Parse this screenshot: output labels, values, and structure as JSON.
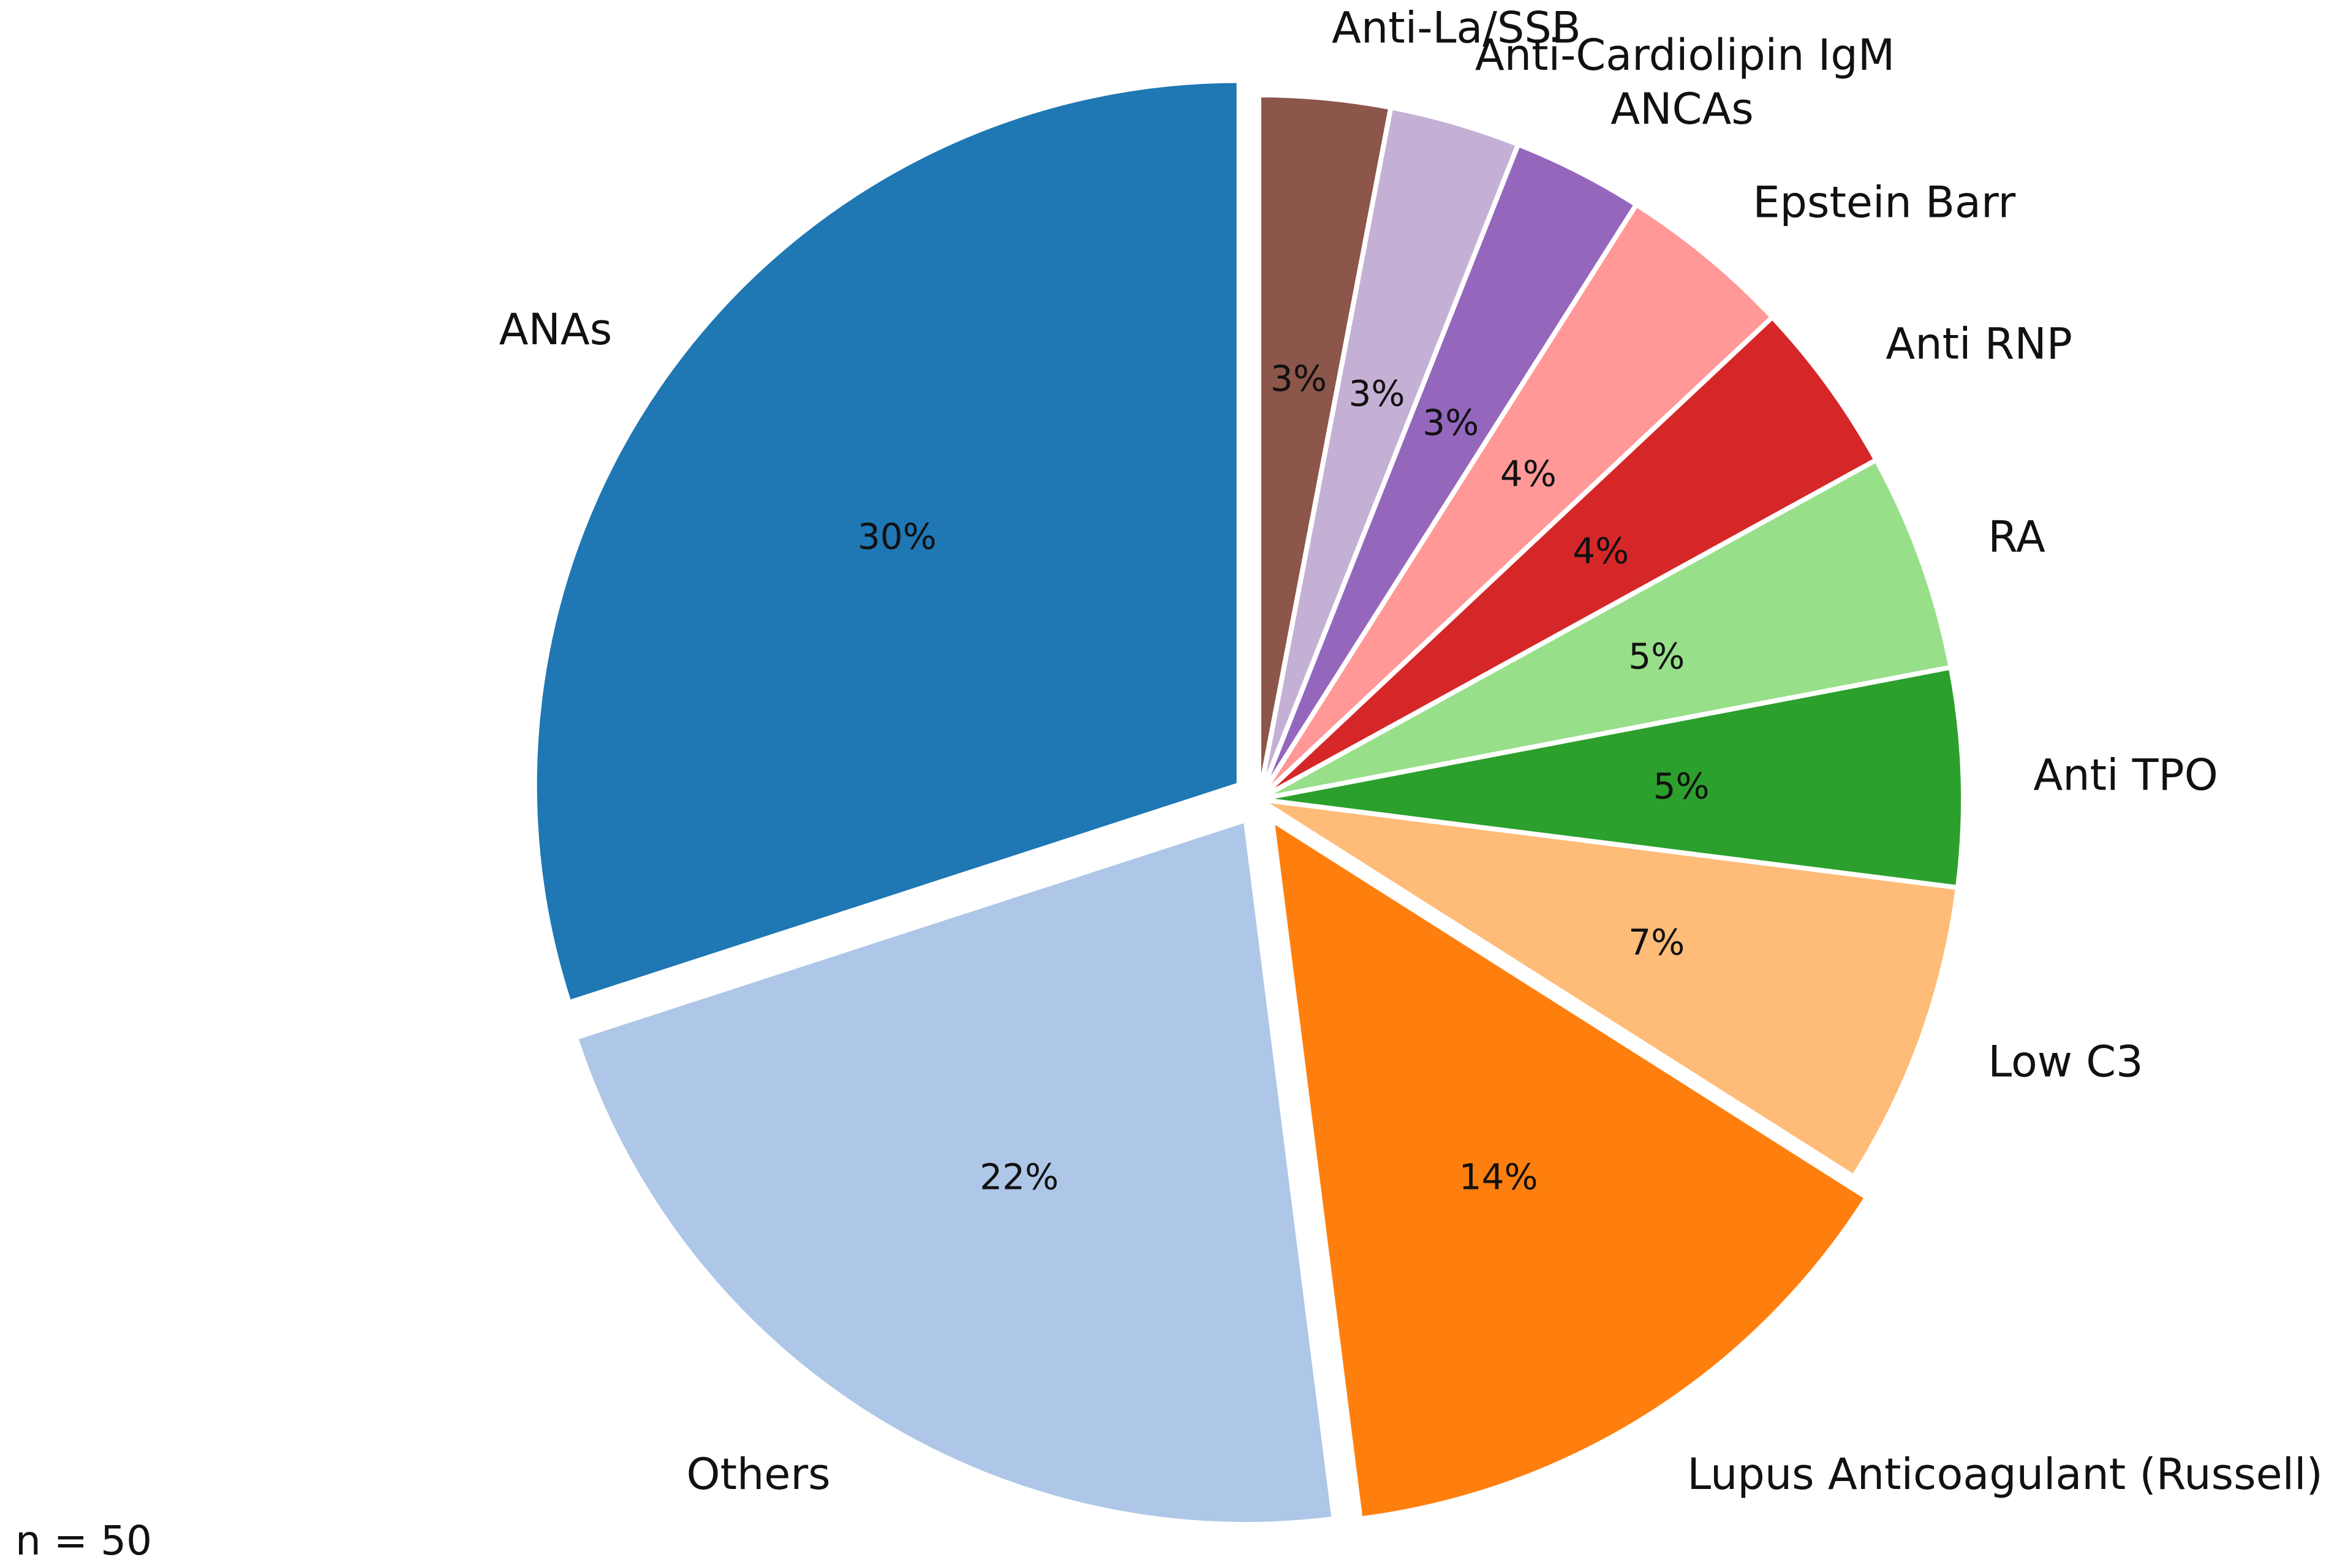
{
  "chart_data": {
    "type": "pie",
    "start": "12 o'clock",
    "direction": "clockwise",
    "slices": [
      {
        "label": "Anti-La/SSB",
        "value": 3,
        "pct_label": "3%",
        "color": "#8c564b",
        "explode": false
      },
      {
        "label": "Anti-Cardiolipin IgM",
        "value": 3,
        "pct_label": "3%",
        "color": "#c5b0d5",
        "explode": false
      },
      {
        "label": "ANCAs",
        "value": 3,
        "pct_label": "3%",
        "color": "#9467bd",
        "explode": false
      },
      {
        "label": "Epstein Barr",
        "value": 4,
        "pct_label": "4%",
        "color": "#ff9896",
        "explode": false
      },
      {
        "label": "Anti RNP",
        "value": 4,
        "pct_label": "4%",
        "color": "#d62728",
        "explode": false
      },
      {
        "label": "RA",
        "value": 5,
        "pct_label": "5%",
        "color": "#98df8a",
        "explode": false
      },
      {
        "label": "Anti TPO",
        "value": 5,
        "pct_label": "5%",
        "color": "#2ca02c",
        "explode": false
      },
      {
        "label": "Low C3",
        "value": 7,
        "pct_label": "7%",
        "color": "#ffbb78",
        "explode": false
      },
      {
        "label": "Lupus Anticoagulant (Russell)",
        "value": 14,
        "pct_label": "14%",
        "color": "#ff7f0e",
        "explode": true
      },
      {
        "label": "Others",
        "value": 22,
        "pct_label": "22%",
        "color": "#aec7e8",
        "explode": true
      },
      {
        "label": "ANAs",
        "value": 30,
        "pct_label": "30%",
        "color": "#1f77b4",
        "explode": true
      }
    ]
  },
  "note": "n = 50"
}
